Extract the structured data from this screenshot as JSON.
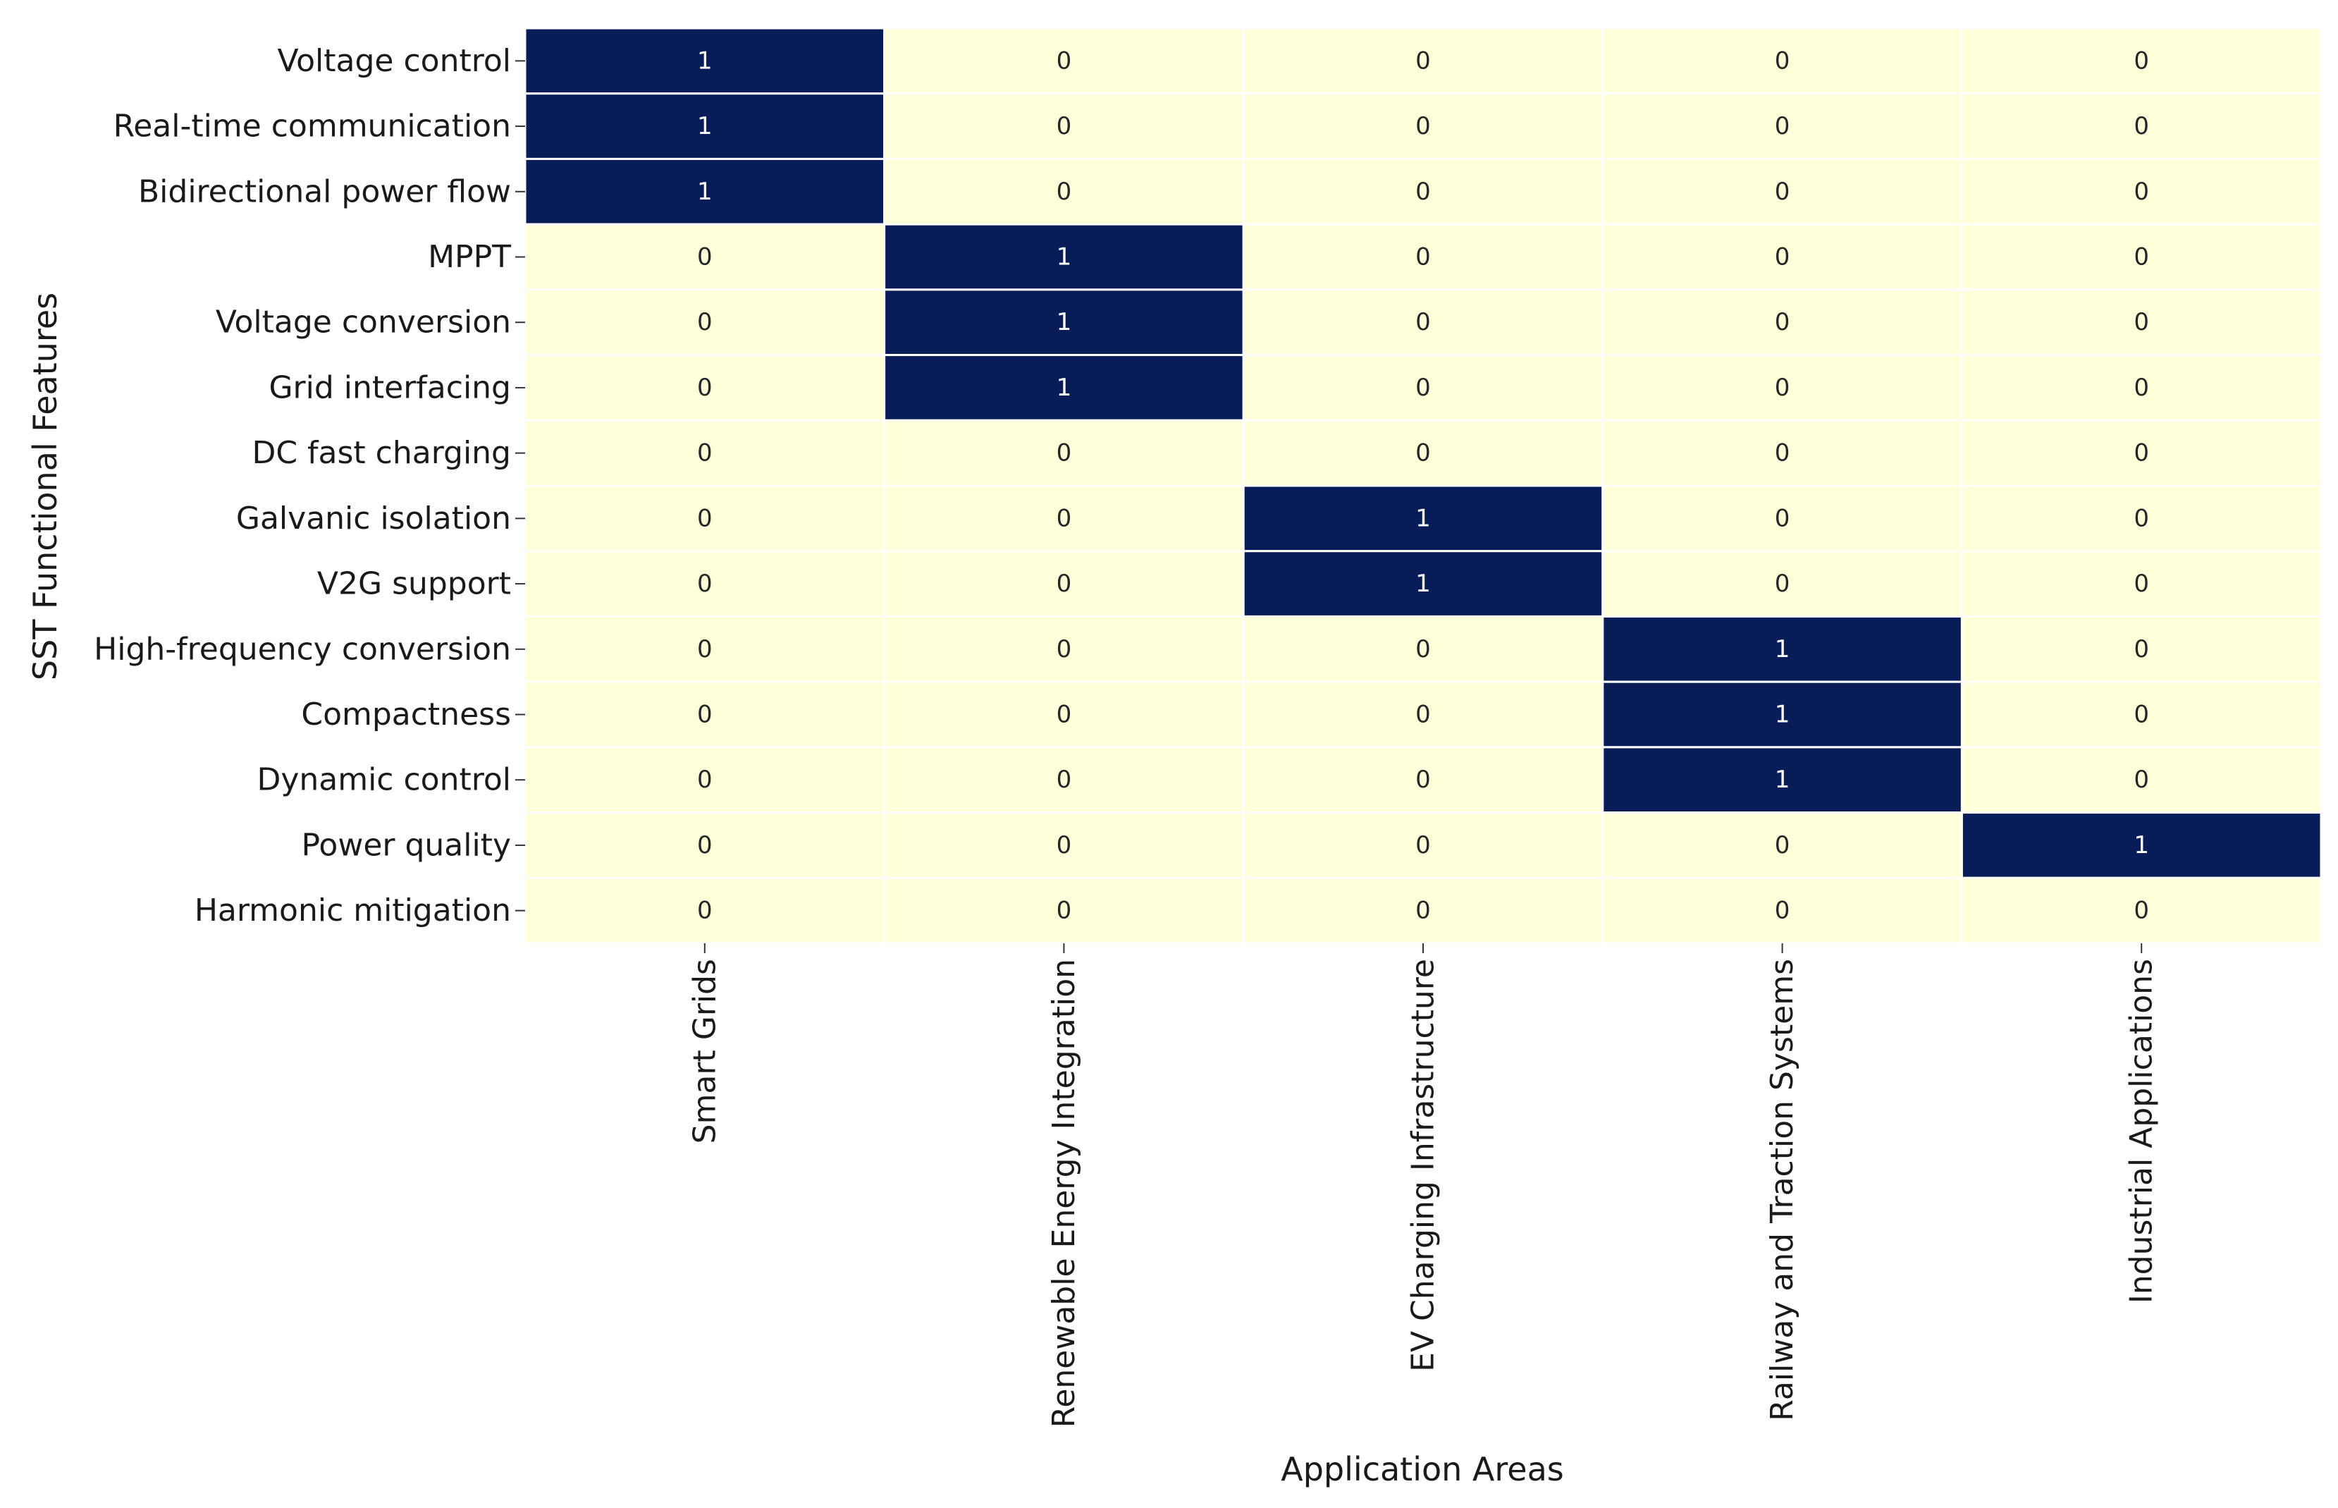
{
  "chart_data": {
    "type": "heatmap",
    "xlabel": "Application Areas",
    "ylabel": "SST Functional Features",
    "x_categories": [
      "Smart Grids",
      "Renewable Energy Integration",
      "EV Charging Infrastructure",
      "Railway and Traction Systems",
      "Industrial Applications"
    ],
    "y_categories": [
      "Voltage control",
      "Real-time communication",
      "Bidirectional power flow",
      "MPPT",
      "Voltage conversion",
      "Grid interfacing",
      "DC fast charging",
      "Galvanic isolation",
      "V2G support",
      "High-frequency conversion",
      "Compactness",
      "Dynamic control",
      "Power quality",
      "Harmonic mitigation"
    ],
    "values": [
      [
        1,
        0,
        0,
        0,
        0
      ],
      [
        1,
        0,
        0,
        0,
        0
      ],
      [
        1,
        0,
        0,
        0,
        0
      ],
      [
        0,
        1,
        0,
        0,
        0
      ],
      [
        0,
        1,
        0,
        0,
        0
      ],
      [
        0,
        1,
        0,
        0,
        0
      ],
      [
        0,
        0,
        0,
        0,
        0
      ],
      [
        0,
        0,
        1,
        0,
        0
      ],
      [
        0,
        0,
        1,
        0,
        0
      ],
      [
        0,
        0,
        0,
        1,
        0
      ],
      [
        0,
        0,
        0,
        1,
        0
      ],
      [
        0,
        0,
        0,
        1,
        0
      ],
      [
        0,
        0,
        0,
        0,
        1
      ],
      [
        0,
        0,
        0,
        0,
        0
      ]
    ],
    "colormap": {
      "0": "#ffffd9",
      "1": "#081d58"
    },
    "annotation_colors": {
      "0": "#262626",
      "1": "#ffffff"
    },
    "annotated": true
  }
}
